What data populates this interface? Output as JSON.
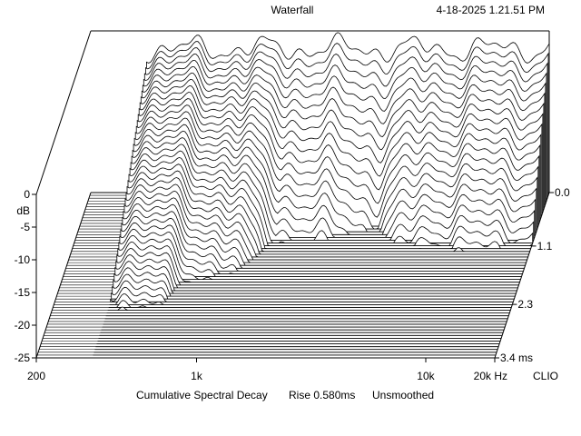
{
  "header": {
    "title": "Waterfall",
    "timestamp": "4-18-2025 1.21.51 PM"
  },
  "footer": {
    "caption": "Cumulative Spectral Decay",
    "rise": "Rise 0.580ms",
    "smoothing": "Unsmoothed",
    "brand": "CLIO"
  },
  "chart_data": {
    "type": "area",
    "title": "Waterfall",
    "subtitle": "Cumulative Spectral Decay   Rise 0.580ms   Unsmoothed",
    "x_axis": {
      "scale": "log",
      "range": [
        200,
        20000
      ],
      "unit": "Hz",
      "ticks": [
        {
          "value": 200,
          "label": "200"
        },
        {
          "value": 1000,
          "label": "1k"
        },
        {
          "value": 10000,
          "label": "10k"
        },
        {
          "value": 20000,
          "label": "20k Hz"
        }
      ]
    },
    "y_axis": {
      "unit": "dB",
      "range": [
        -25,
        0
      ],
      "ticks": [
        {
          "value": 0,
          "label": "0"
        },
        {
          "value": -5,
          "label": "-5"
        },
        {
          "value": -10,
          "label": "-10"
        },
        {
          "value": -15,
          "label": "-15"
        },
        {
          "value": -20,
          "label": "-20"
        },
        {
          "value": -25,
          "label": "-25"
        }
      ],
      "label": "dB"
    },
    "z_axis": {
      "unit": "ms",
      "range": [
        0,
        3.4
      ],
      "ticks": [
        {
          "value": 0,
          "label": "0.0"
        },
        {
          "value": 1.1,
          "label": "1.1"
        },
        {
          "value": 2.3,
          "label": "2.3"
        },
        {
          "value": 3.4,
          "label": "3.4 ms"
        }
      ]
    },
    "slices": 60,
    "display_start_hz": 350,
    "envelope": {
      "freq_hz": [
        350,
        500,
        700,
        1000,
        1500,
        2000,
        3000,
        4000,
        5000,
        7000,
        10000,
        15000,
        20000
      ],
      "decay_ms": [
        2.8,
        2.6,
        2.2,
        1.9,
        1.2,
        1.1,
        1.0,
        0.9,
        1.1,
        1.3,
        1.3,
        1.3,
        1.2
      ]
    }
  }
}
